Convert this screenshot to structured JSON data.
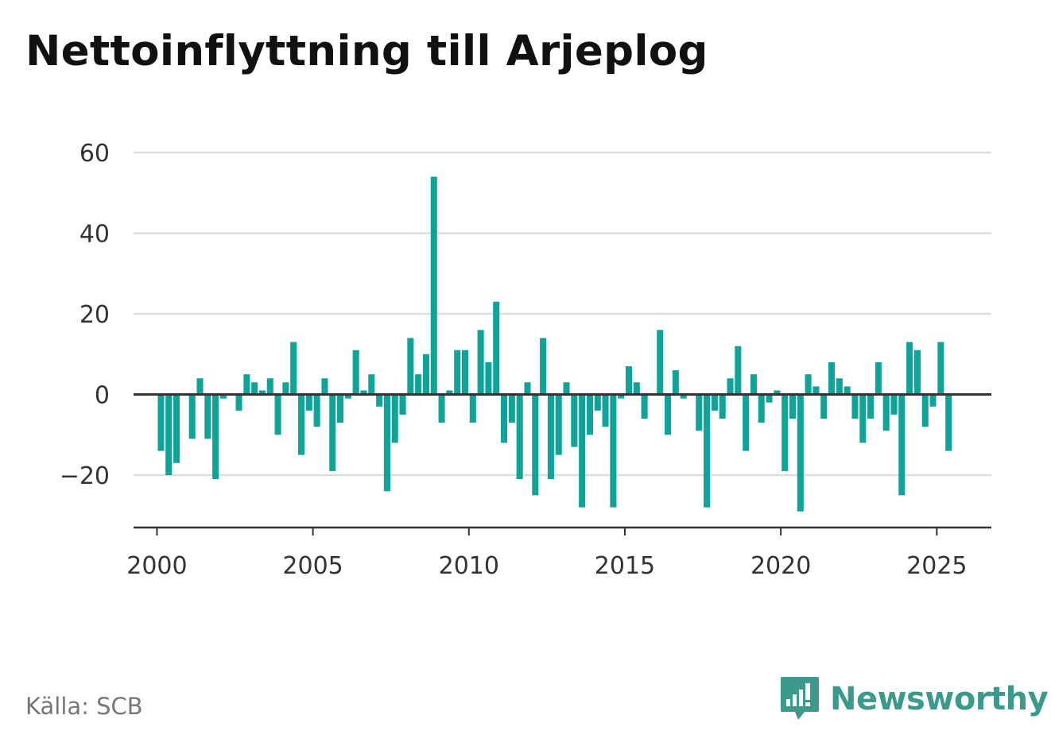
{
  "title": "Nettoinflyttning till Arjeplog",
  "source": "Källa: SCB",
  "brand": "Newsworthy",
  "colors": {
    "bar": "#0fa39a",
    "grid": "#dddddd",
    "axis": "#333333",
    "brand": "#3c9a8c"
  },
  "chart_data": {
    "type": "bar",
    "title": "Nettoinflyttning till Arjeplog",
    "xlabel": "",
    "ylabel": "",
    "x_ticks": [
      "2000",
      "2005",
      "2010",
      "2015",
      "2020",
      "2025"
    ],
    "y_ticks": [
      "60",
      "40",
      "20",
      "0",
      "−20"
    ],
    "xlim": [
      1999.25,
      2026.75
    ],
    "ylim": [
      -33,
      60
    ],
    "grid": true,
    "series": [
      {
        "values": [
          {
            "date": "2000-Q1",
            "value": -14
          },
          {
            "date": "2000-Q2",
            "value": -20
          },
          {
            "date": "2000-Q3",
            "value": -17
          },
          {
            "date": "2000-Q4",
            "value": 0
          },
          {
            "date": "2001-Q1",
            "value": -11
          },
          {
            "date": "2001-Q2",
            "value": 4
          },
          {
            "date": "2001-Q3",
            "value": -11
          },
          {
            "date": "2001-Q4",
            "value": -21
          },
          {
            "date": "2002-Q1",
            "value": -1
          },
          {
            "date": "2002-Q2",
            "value": 0
          },
          {
            "date": "2002-Q3",
            "value": -4
          },
          {
            "date": "2002-Q4",
            "value": 5
          },
          {
            "date": "2003-Q1",
            "value": 3
          },
          {
            "date": "2003-Q2",
            "value": 1
          },
          {
            "date": "2003-Q3",
            "value": 4
          },
          {
            "date": "2003-Q4",
            "value": -10
          },
          {
            "date": "2004-Q1",
            "value": 3
          },
          {
            "date": "2004-Q2",
            "value": 13
          },
          {
            "date": "2004-Q3",
            "value": -15
          },
          {
            "date": "2004-Q4",
            "value": -4
          },
          {
            "date": "2005-Q1",
            "value": -8
          },
          {
            "date": "2005-Q2",
            "value": 4
          },
          {
            "date": "2005-Q3",
            "value": -19
          },
          {
            "date": "2005-Q4",
            "value": -7
          },
          {
            "date": "2006-Q1",
            "value": -1
          },
          {
            "date": "2006-Q2",
            "value": 11
          },
          {
            "date": "2006-Q3",
            "value": 1
          },
          {
            "date": "2006-Q4",
            "value": 5
          },
          {
            "date": "2007-Q1",
            "value": -3
          },
          {
            "date": "2007-Q2",
            "value": -24
          },
          {
            "date": "2007-Q3",
            "value": -12
          },
          {
            "date": "2007-Q4",
            "value": -5
          },
          {
            "date": "2008-Q1",
            "value": 14
          },
          {
            "date": "2008-Q2",
            "value": 5
          },
          {
            "date": "2008-Q3",
            "value": 10
          },
          {
            "date": "2008-Q4",
            "value": 54
          },
          {
            "date": "2009-Q1",
            "value": -7
          },
          {
            "date": "2009-Q2",
            "value": 1
          },
          {
            "date": "2009-Q3",
            "value": 11
          },
          {
            "date": "2009-Q4",
            "value": 11
          },
          {
            "date": "2010-Q1",
            "value": -7
          },
          {
            "date": "2010-Q2",
            "value": 16
          },
          {
            "date": "2010-Q3",
            "value": 8
          },
          {
            "date": "2010-Q4",
            "value": 23
          },
          {
            "date": "2011-Q1",
            "value": -12
          },
          {
            "date": "2011-Q2",
            "value": -7
          },
          {
            "date": "2011-Q3",
            "value": -21
          },
          {
            "date": "2011-Q4",
            "value": 3
          },
          {
            "date": "2012-Q1",
            "value": -25
          },
          {
            "date": "2012-Q2",
            "value": 14
          },
          {
            "date": "2012-Q3",
            "value": -21
          },
          {
            "date": "2012-Q4",
            "value": -15
          },
          {
            "date": "2013-Q1",
            "value": 3
          },
          {
            "date": "2013-Q2",
            "value": -13
          },
          {
            "date": "2013-Q3",
            "value": -28
          },
          {
            "date": "2013-Q4",
            "value": -10
          },
          {
            "date": "2014-Q1",
            "value": -4
          },
          {
            "date": "2014-Q2",
            "value": -8
          },
          {
            "date": "2014-Q3",
            "value": -28
          },
          {
            "date": "2014-Q4",
            "value": -1
          },
          {
            "date": "2015-Q1",
            "value": 7
          },
          {
            "date": "2015-Q2",
            "value": 3
          },
          {
            "date": "2015-Q3",
            "value": -6
          },
          {
            "date": "2015-Q4",
            "value": 0
          },
          {
            "date": "2016-Q1",
            "value": 16
          },
          {
            "date": "2016-Q2",
            "value": -10
          },
          {
            "date": "2016-Q3",
            "value": 6
          },
          {
            "date": "2016-Q4",
            "value": -1
          },
          {
            "date": "2017-Q1",
            "value": 0
          },
          {
            "date": "2017-Q2",
            "value": -9
          },
          {
            "date": "2017-Q3",
            "value": -28
          },
          {
            "date": "2017-Q4",
            "value": -4
          },
          {
            "date": "2018-Q1",
            "value": -6
          },
          {
            "date": "2018-Q2",
            "value": 4
          },
          {
            "date": "2018-Q3",
            "value": 12
          },
          {
            "date": "2018-Q4",
            "value": -14
          },
          {
            "date": "2019-Q1",
            "value": 5
          },
          {
            "date": "2019-Q2",
            "value": -7
          },
          {
            "date": "2019-Q3",
            "value": -2
          },
          {
            "date": "2019-Q4",
            "value": 1
          },
          {
            "date": "2020-Q1",
            "value": -19
          },
          {
            "date": "2020-Q2",
            "value": -6
          },
          {
            "date": "2020-Q3",
            "value": -29
          },
          {
            "date": "2020-Q4",
            "value": 5
          },
          {
            "date": "2021-Q1",
            "value": 2
          },
          {
            "date": "2021-Q2",
            "value": -6
          },
          {
            "date": "2021-Q3",
            "value": 8
          },
          {
            "date": "2021-Q4",
            "value": 4
          },
          {
            "date": "2022-Q1",
            "value": 2
          },
          {
            "date": "2022-Q2",
            "value": -6
          },
          {
            "date": "2022-Q3",
            "value": -12
          },
          {
            "date": "2022-Q4",
            "value": -6
          },
          {
            "date": "2023-Q1",
            "value": 8
          },
          {
            "date": "2023-Q2",
            "value": -9
          },
          {
            "date": "2023-Q3",
            "value": -5
          },
          {
            "date": "2023-Q4",
            "value": -25
          },
          {
            "date": "2024-Q1",
            "value": 13
          },
          {
            "date": "2024-Q2",
            "value": 11
          },
          {
            "date": "2024-Q3",
            "value": -8
          },
          {
            "date": "2024-Q4",
            "value": -3
          },
          {
            "date": "2025-Q1",
            "value": 13
          },
          {
            "date": "2025-Q2",
            "value": -14
          }
        ]
      }
    ]
  }
}
